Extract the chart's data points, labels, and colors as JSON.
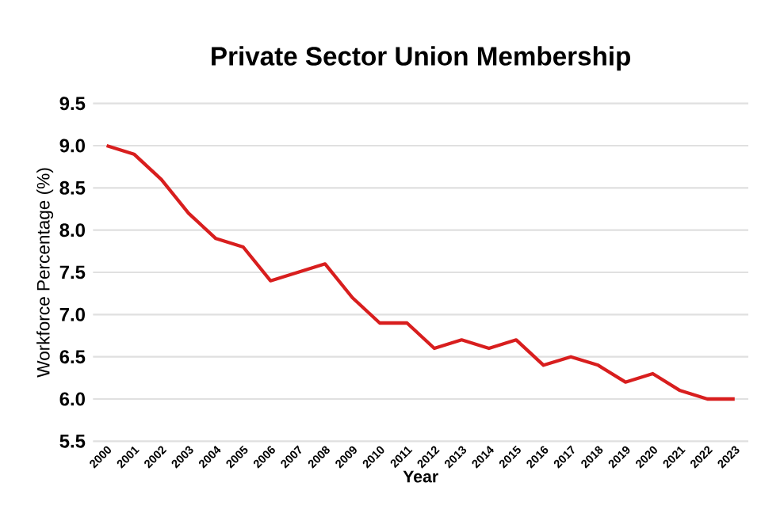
{
  "chart_data": {
    "type": "line",
    "title": "Private Sector Union Membership",
    "xlabel": "Year",
    "ylabel": "Workforce Percentage (%)",
    "categories": [
      "2000",
      "2001",
      "2002",
      "2003",
      "2004",
      "2005",
      "2006",
      "2007",
      "2008",
      "2009",
      "2010",
      "2011",
      "2012",
      "2013",
      "2014",
      "2015",
      "2016",
      "2017",
      "2018",
      "2019",
      "2020",
      "2021",
      "2022",
      "2023"
    ],
    "series": [
      {
        "color": "#d81e1e",
        "values": [
          9.0,
          8.9,
          8.6,
          8.2,
          7.9,
          7.8,
          7.4,
          7.5,
          7.6,
          7.2,
          6.9,
          6.9,
          6.6,
          6.7,
          6.6,
          6.7,
          6.4,
          6.5,
          6.4,
          6.2,
          6.3,
          6.1,
          6.0,
          6.0
        ]
      }
    ],
    "ylim": [
      5.5,
      9.5
    ],
    "yticks": [
      5.5,
      {
        "value": 6,
        "label": "6.0"
      },
      6.5,
      {
        "value": 7,
        "label": "7.0"
      },
      7.5,
      {
        "value": 8,
        "label": "8.0"
      },
      8.5,
      {
        "value": 9,
        "label": "9.0"
      },
      9.5
    ],
    "grid": "y",
    "marker": "none",
    "line_style": "solid"
  }
}
